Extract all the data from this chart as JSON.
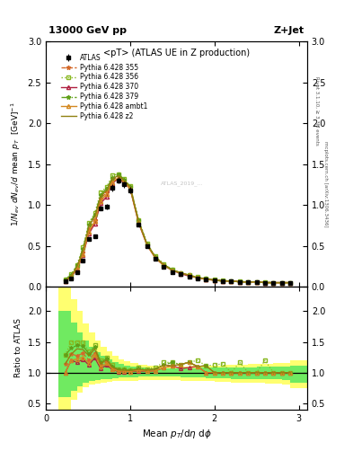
{
  "title_top": "13000 GeV pp",
  "title_right": "Z+Jet",
  "plot_title": "<pT> (ATLAS UE in Z production)",
  "ylabel_main": "1/N_{ev} dN_{ev}/d mean p_{T}  [GeV]^{-1}",
  "ylabel_ratio": "Ratio to ATLAS",
  "xlabel": "Mean $p_T$/d$\\eta$ d$\\phi$",
  "right_label1": "Rivet 3.1.10, ≥ 3.3M events",
  "right_label2": "mcplots.cern.ch [arXiv:1306.3436]",
  "watermark": "ATLAS_2019_...",
  "ylim_main": [
    0,
    3.0
  ],
  "ylim_ratio": [
    0.4,
    2.4
  ],
  "xlim": [
    0.15,
    3.1
  ],
  "yticks_main": [
    0,
    0.5,
    1.0,
    1.5,
    2.0,
    2.5,
    3.0
  ],
  "yticks_ratio": [
    0.5,
    1.0,
    1.5,
    2.0
  ],
  "xticks": [
    0,
    1,
    2,
    3
  ],
  "atlas_x": [
    0.23,
    0.3,
    0.37,
    0.44,
    0.51,
    0.58,
    0.65,
    0.72,
    0.79,
    0.86,
    0.93,
    1.0,
    1.1,
    1.2,
    1.3,
    1.4,
    1.5,
    1.6,
    1.7,
    1.8,
    1.9,
    2.0,
    2.1,
    2.2,
    2.3,
    2.4,
    2.5,
    2.6,
    2.7,
    2.8,
    2.9
  ],
  "atlas_y": [
    0.07,
    0.1,
    0.18,
    0.32,
    0.58,
    0.62,
    0.96,
    0.98,
    1.21,
    1.3,
    1.25,
    1.18,
    0.76,
    0.5,
    0.34,
    0.24,
    0.18,
    0.15,
    0.12,
    0.1,
    0.09,
    0.08,
    0.07,
    0.07,
    0.06,
    0.06,
    0.06,
    0.05,
    0.05,
    0.05,
    0.05
  ],
  "atlas_yerr": [
    0.005,
    0.005,
    0.008,
    0.012,
    0.02,
    0.02,
    0.03,
    0.03,
    0.04,
    0.04,
    0.04,
    0.04,
    0.025,
    0.018,
    0.013,
    0.01,
    0.008,
    0.007,
    0.006,
    0.005,
    0.005,
    0.004,
    0.004,
    0.004,
    0.004,
    0.004,
    0.004,
    0.003,
    0.003,
    0.003,
    0.004
  ],
  "mc_x": [
    0.23,
    0.3,
    0.37,
    0.44,
    0.51,
    0.58,
    0.65,
    0.72,
    0.79,
    0.86,
    0.93,
    1.0,
    1.1,
    1.2,
    1.3,
    1.4,
    1.5,
    1.6,
    1.7,
    1.8,
    1.9,
    2.0,
    2.1,
    2.2,
    2.3,
    2.4,
    2.5,
    2.6,
    2.7,
    2.8,
    2.9
  ],
  "mc355_y": [
    0.08,
    0.13,
    0.23,
    0.42,
    0.7,
    0.82,
    1.08,
    1.15,
    1.3,
    1.35,
    1.3,
    1.22,
    0.8,
    0.52,
    0.36,
    0.27,
    0.2,
    0.17,
    0.14,
    0.11,
    0.1,
    0.08,
    0.07,
    0.07,
    0.06,
    0.06,
    0.06,
    0.05,
    0.05,
    0.05,
    0.05
  ],
  "mc356_y": [
    0.09,
    0.15,
    0.27,
    0.48,
    0.78,
    0.9,
    1.15,
    1.22,
    1.36,
    1.38,
    1.32,
    1.23,
    0.82,
    0.53,
    0.37,
    0.28,
    0.21,
    0.17,
    0.14,
    0.12,
    0.1,
    0.09,
    0.08,
    0.07,
    0.07,
    0.06,
    0.06,
    0.06,
    0.05,
    0.05,
    0.05
  ],
  "mc370_y": [
    0.07,
    0.12,
    0.21,
    0.39,
    0.65,
    0.77,
    1.02,
    1.1,
    1.27,
    1.32,
    1.27,
    1.2,
    0.78,
    0.51,
    0.35,
    0.26,
    0.2,
    0.16,
    0.13,
    0.11,
    0.09,
    0.08,
    0.07,
    0.07,
    0.06,
    0.06,
    0.06,
    0.05,
    0.05,
    0.05,
    0.05
  ],
  "mc379_y": [
    0.09,
    0.14,
    0.26,
    0.46,
    0.76,
    0.88,
    1.12,
    1.2,
    1.33,
    1.37,
    1.31,
    1.22,
    0.81,
    0.52,
    0.36,
    0.27,
    0.21,
    0.17,
    0.14,
    0.11,
    0.1,
    0.08,
    0.07,
    0.07,
    0.06,
    0.06,
    0.06,
    0.05,
    0.05,
    0.05,
    0.05
  ],
  "mcambt1_y": [
    0.07,
    0.12,
    0.22,
    0.4,
    0.67,
    0.8,
    1.05,
    1.13,
    1.28,
    1.33,
    1.28,
    1.2,
    0.79,
    0.51,
    0.35,
    0.26,
    0.2,
    0.17,
    0.14,
    0.11,
    0.09,
    0.08,
    0.07,
    0.07,
    0.06,
    0.06,
    0.06,
    0.05,
    0.05,
    0.05,
    0.05
  ],
  "mcz2_y": [
    0.08,
    0.13,
    0.25,
    0.44,
    0.74,
    0.86,
    1.1,
    1.18,
    1.32,
    1.36,
    1.3,
    1.22,
    0.8,
    0.52,
    0.36,
    0.27,
    0.2,
    0.17,
    0.14,
    0.11,
    0.1,
    0.08,
    0.07,
    0.07,
    0.06,
    0.06,
    0.06,
    0.05,
    0.05,
    0.05,
    0.05
  ],
  "color_355": "#d4692a",
  "color_356": "#88b820",
  "color_370": "#b02040",
  "color_379": "#60a018",
  "color_ambt1": "#d48820",
  "color_z2": "#908010",
  "band_yellow": "#ffff60",
  "band_green": "#60e860"
}
